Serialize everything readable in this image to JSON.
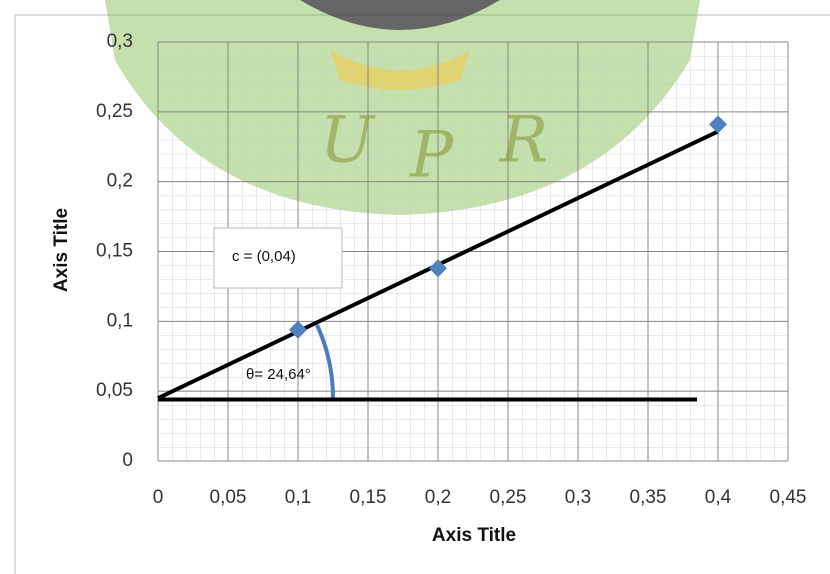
{
  "chart_data": {
    "type": "scatter",
    "x_label": "Axis Title",
    "y_label": "Axis Title",
    "xlim": [
      0,
      0.45
    ],
    "xticks": [
      0,
      {
        "value": 0.05,
        "label": "0,05"
      },
      {
        "value": 0.1,
        "label": "0,1"
      },
      {
        "value": 0.15,
        "label": "0,15"
      },
      {
        "value": 0.2,
        "label": "0,2"
      },
      {
        "value": 0.25,
        "label": "0,25"
      },
      {
        "value": 0.3,
        "label": "0,3"
      },
      {
        "value": 0.35,
        "label": "0,35"
      },
      {
        "value": 0.4,
        "label": "0,4"
      },
      {
        "value": 0.45,
        "label": "0,45"
      }
    ],
    "ylim": [
      0,
      0.3
    ],
    "yticks": [
      0,
      {
        "value": 0.05,
        "label": "0,05"
      },
      {
        "value": 0.1,
        "label": "0,1"
      },
      {
        "value": 0.15,
        "label": "0,15"
      },
      {
        "value": 0.2,
        "label": "0,2"
      },
      {
        "value": 0.25,
        "label": "0,25"
      },
      {
        "value": 0.3,
        "label": "0,3"
      }
    ],
    "grid": true,
    "series": [
      {
        "color": "#4f81bd",
        "x": [
          0.1,
          0.2,
          0.4
        ],
        "values": [
          0.094,
          0.138,
          0.241
        ]
      }
    ],
    "trendline": {
      "color": "#000000",
      "x": [
        0,
        0.4
      ],
      "values": [
        0.045,
        0.236
      ]
    },
    "baseline": {
      "color": "#000000",
      "x": [
        0,
        0.385
      ],
      "values": [
        0.044,
        0.044
      ]
    },
    "annotations": [
      "c = (0,04)",
      "θ= 24,64°"
    ]
  },
  "watermark": {
    "letters": [
      "U",
      "P",
      "R"
    ]
  }
}
